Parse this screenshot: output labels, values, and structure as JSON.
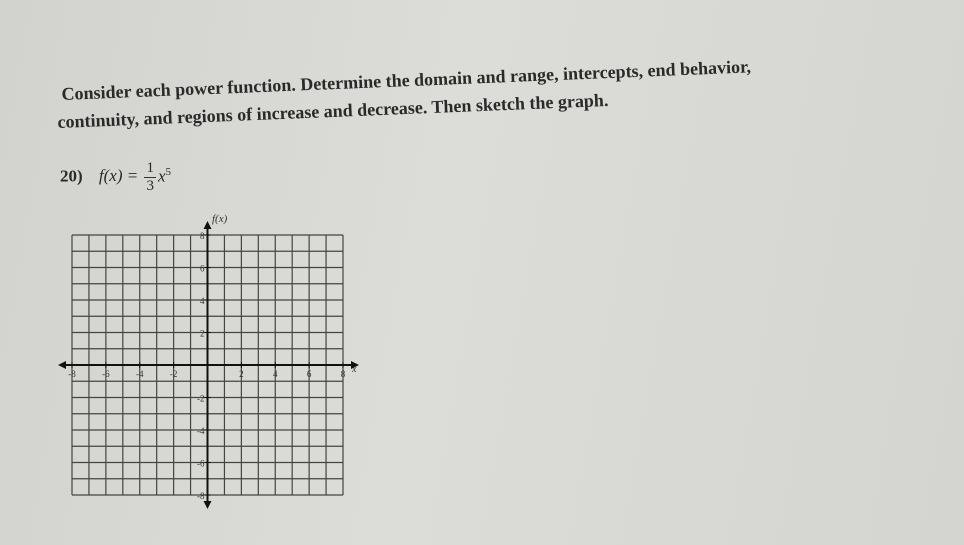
{
  "instructions": [
    "Consider each power function.  Determine the domain and range, intercepts, end behavior,",
    "continuity, and regions of increase and decrease.  Then sketch the graph."
  ],
  "problem": {
    "number": "20)",
    "function_lhs": "f(x) =",
    "numerator": "1",
    "denominator": "3",
    "variable": "x",
    "exponent": "5"
  },
  "graph": {
    "x_label": "x",
    "y_label": "f(x)",
    "xlim": [
      -8,
      8
    ],
    "ylim": [
      -8,
      8
    ],
    "xticks": [
      -8,
      -6,
      -4,
      -2,
      2,
      4,
      6,
      8
    ],
    "yticks": [
      8,
      6,
      4,
      2,
      -2,
      -4,
      -6,
      -8
    ]
  }
}
